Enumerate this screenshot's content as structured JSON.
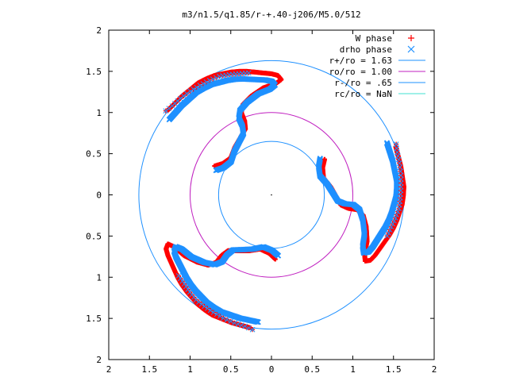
{
  "chart_data": {
    "type": "scatter",
    "title": "m3/n1.5/q1.85/r-+.40-j206/M5.0/512",
    "xlabel": "",
    "ylabel": "",
    "xlim": [
      2,
      -2
    ],
    "ylim": [
      -2,
      2
    ],
    "x_tick_labels": [
      "2",
      "1.5",
      "1",
      "0.5",
      "0",
      "0.5",
      "1",
      "1.5",
      "2"
    ],
    "y_tick_labels": [
      "2",
      "1.5",
      "1",
      "0.5",
      "0",
      "0.5",
      "1",
      "1.5",
      "2"
    ],
    "grid": false,
    "legend_position": "top-right",
    "series": [
      {
        "name": "W phase",
        "kind": "points",
        "marker": "+",
        "color": "#ff0000"
      },
      {
        "name": "drho phase",
        "kind": "points",
        "marker": "x",
        "color": "#1e90ff"
      },
      {
        "name": "r+/ro = 1.63",
        "kind": "circle",
        "radius": 1.63,
        "color": "#1e90ff"
      },
      {
        "name": "ro/ro = 1.00",
        "kind": "circle",
        "radius": 1.0,
        "color": "#c020c0"
      },
      {
        "name": "r-/ro = .65",
        "kind": "circle",
        "radius": 0.65,
        "color": "#1e90ff"
      },
      {
        "name": "rc/ro = NaN",
        "kind": "circle",
        "radius": null,
        "color": "#40e0d0"
      }
    ],
    "arm_path": [
      [
        -1.27,
        1.03
      ],
      [
        -1.2,
        1.1
      ],
      [
        -1.1,
        1.2
      ],
      [
        -1.0,
        1.28
      ],
      [
        -0.9,
        1.36
      ],
      [
        -0.8,
        1.41
      ],
      [
        -0.7,
        1.45
      ],
      [
        -0.6,
        1.47
      ],
      [
        -0.5,
        1.49
      ],
      [
        -0.4,
        1.5
      ],
      [
        -0.3,
        1.5
      ],
      [
        -0.2,
        1.49
      ],
      [
        -0.1,
        1.48
      ],
      [
        0.0,
        1.47
      ],
      [
        0.08,
        1.45
      ],
      [
        0.12,
        1.4
      ],
      [
        0.05,
        1.35
      ],
      [
        -0.1,
        1.3
      ],
      [
        -0.25,
        1.2
      ],
      [
        -0.35,
        1.1
      ],
      [
        -0.37,
        1.0
      ],
      [
        -0.33,
        0.9
      ],
      [
        -0.32,
        0.8
      ],
      [
        -0.38,
        0.7
      ],
      [
        -0.45,
        0.58
      ],
      [
        -0.5,
        0.45
      ],
      [
        -0.6,
        0.38
      ],
      [
        -0.7,
        0.35
      ]
    ],
    "arm_scatter_path": [
      [
        -1.3,
        1.02
      ],
      [
        -1.22,
        1.08
      ],
      [
        -1.12,
        1.17
      ],
      [
        -1.0,
        1.26
      ],
      [
        -0.88,
        1.33
      ],
      [
        -0.76,
        1.39
      ],
      [
        -0.64,
        1.44
      ],
      [
        -0.52,
        1.46
      ],
      [
        -0.4,
        1.47
      ],
      [
        -0.28,
        1.48
      ]
    ],
    "arm_rotations_deg": [
      0,
      120,
      240
    ]
  }
}
